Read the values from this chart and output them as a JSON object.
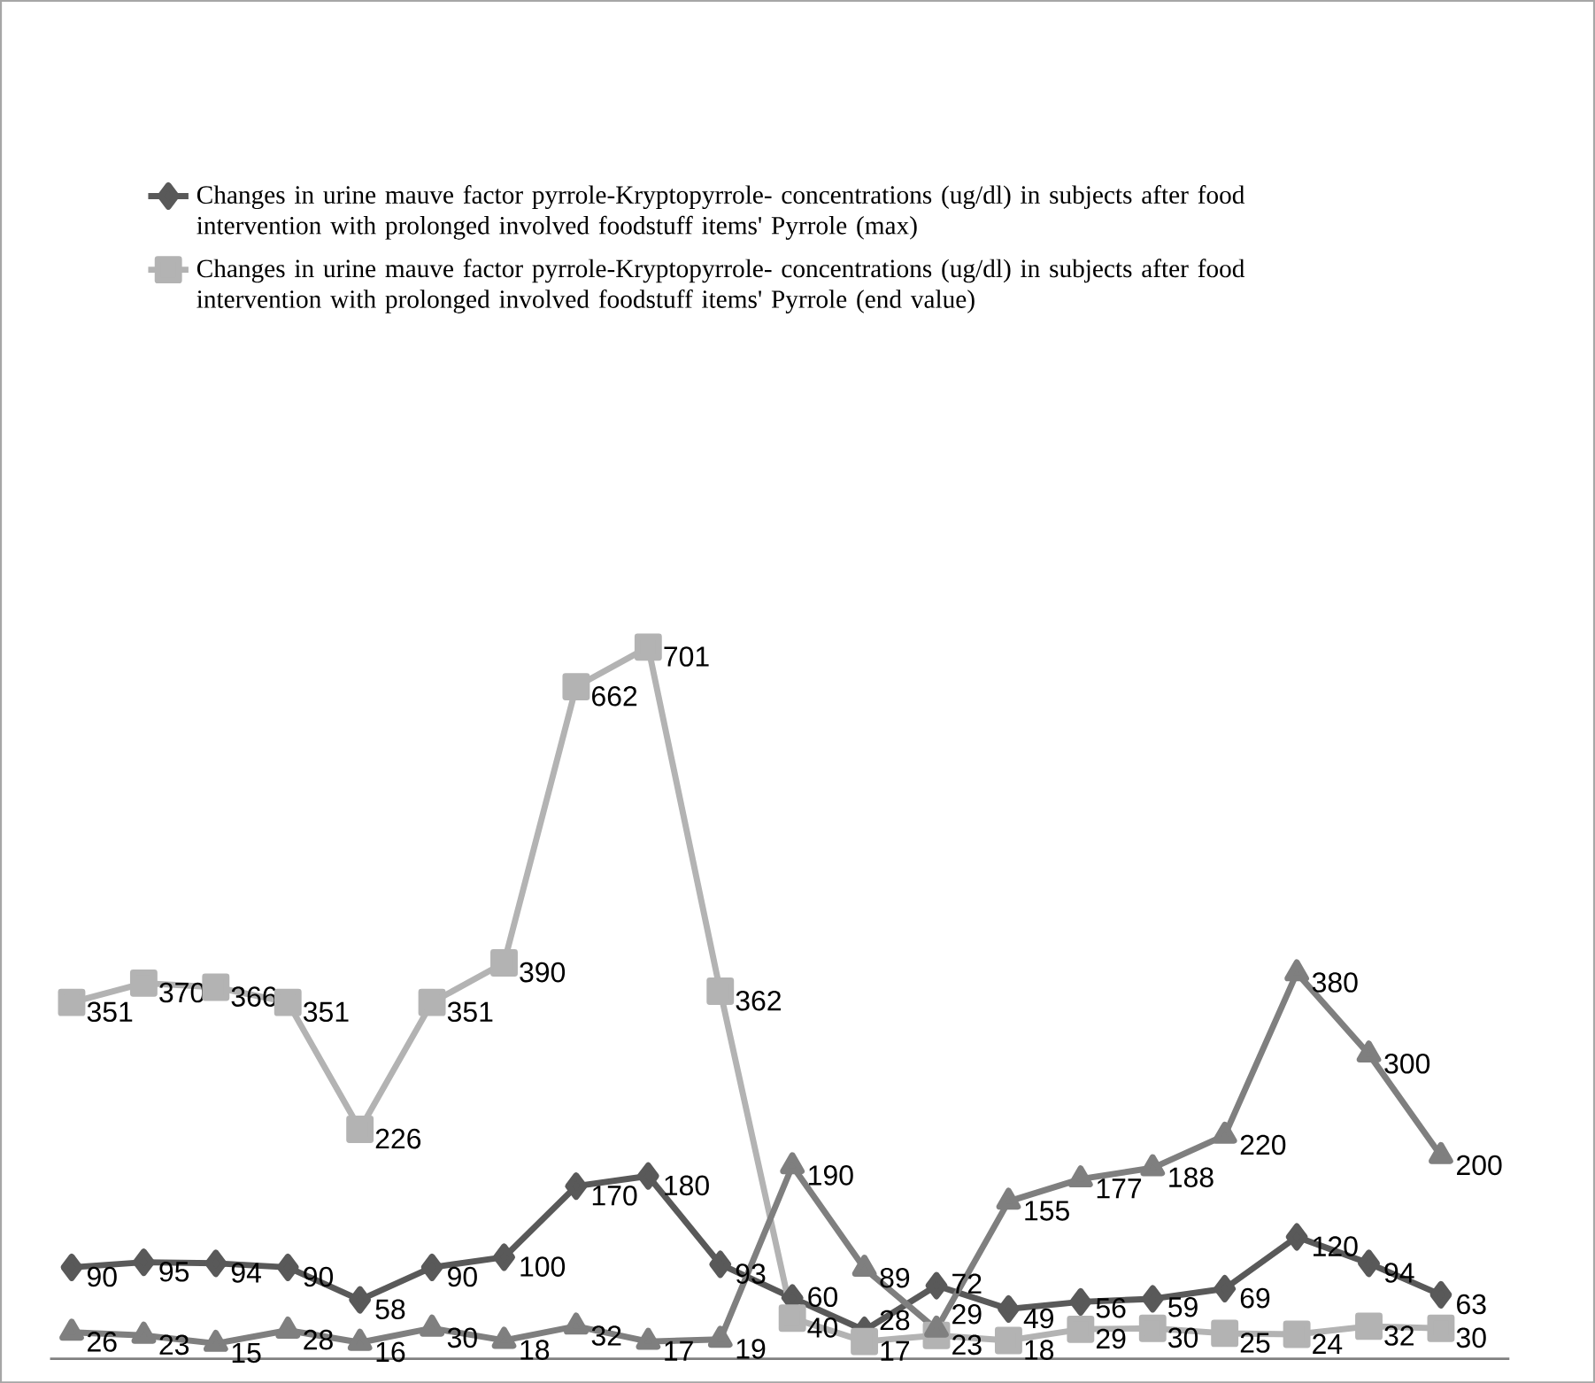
{
  "chart_data": {
    "type": "line",
    "categories": [
      null,
      null,
      null,
      null,
      null,
      null,
      null,
      null,
      null,
      null,
      null,
      null,
      null,
      null,
      null,
      null,
      null,
      null,
      null,
      null
    ],
    "series": [
      {
        "name": "Changes in urine mauve factor pyrrole-Kryptopyrrole- concentrations (ug/dl) in subjects after food intervention with prolonged involved foodstuff items' Pyrrole (max)",
        "color": "#595959",
        "marker": "diamond",
        "values": [
          90,
          95,
          94,
          90,
          58,
          90,
          100,
          170,
          180,
          93,
          60,
          28,
          72,
          49,
          56,
          59,
          69,
          120,
          94,
          63
        ]
      },
      {
        "name": "Changes in urine mauve factor pyrrole-Kryptopyrrole- concentrations (ug/dl) in subjects after food intervention with prolonged involved foodstuff items' Pyrrole (end value)",
        "color": "#b3b3b3",
        "marker": "square",
        "values": [
          351,
          370,
          366,
          351,
          226,
          351,
          390,
          662,
          701,
          362,
          40,
          17,
          23,
          18,
          29,
          30,
          25,
          24,
          32,
          30
        ]
      },
      {
        "color": "#7f7f7f",
        "marker": "triangle",
        "values": [
          26,
          23,
          15,
          28,
          16,
          30,
          18,
          32,
          17,
          19,
          190,
          89,
          29,
          155,
          177,
          188,
          220,
          380,
          300,
          200
        ]
      }
    ],
    "data_labels": true,
    "legend": "top",
    "tick_labels": false
  }
}
